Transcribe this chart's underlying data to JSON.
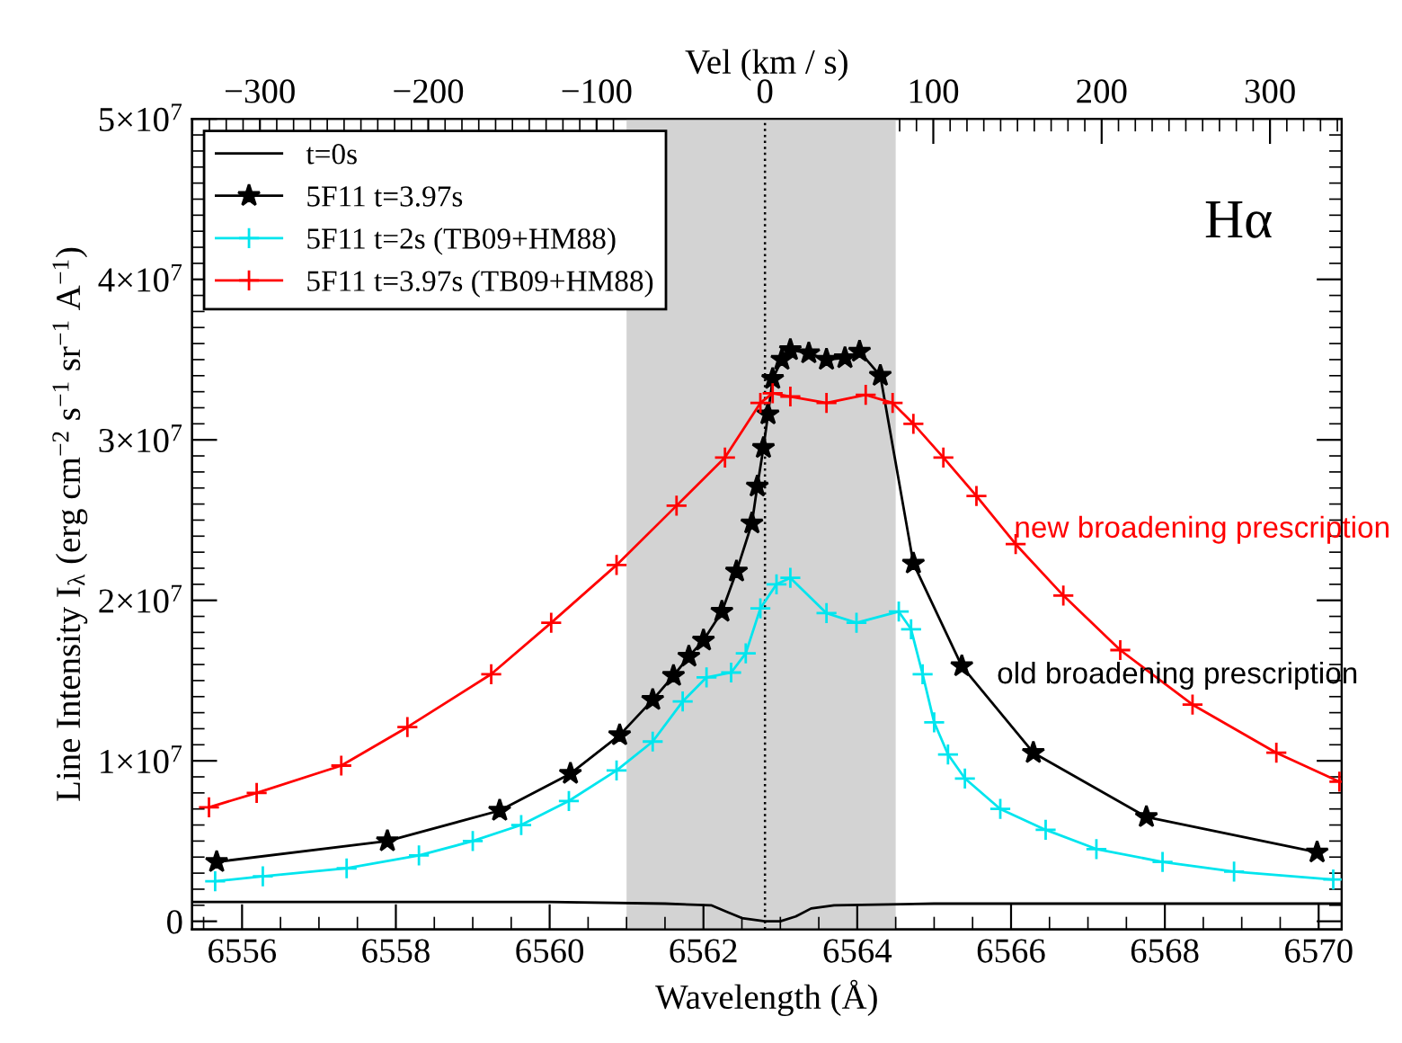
{
  "chart_data": {
    "type": "line",
    "xlabel": "Wavelength (Å)",
    "ylabel": "Line Intensity I$_{λ}$ (erg cm$^{−2}$ s$^{−1}$ sr$^{−1}$ A$^{−1}$)",
    "x2label": "Vel (km / s)",
    "xlim": [
      6555.35,
      6570.3
    ],
    "xticks": [
      6556,
      6558,
      6560,
      6562,
      6564,
      6566,
      6568,
      6570
    ],
    "x2lim": [
      -340.3,
      342.6
    ],
    "x2ticks": [
      {
        "value": -300,
        "label": "−300"
      },
      {
        "value": -200,
        "label": "−200"
      },
      {
        "value": -100,
        "label": "−100"
      },
      0,
      100,
      200,
      300
    ],
    "ylim": [
      -500000.0,
      50000000.0
    ],
    "yticks": [
      0,
      {
        "value": 10000000.0,
        "label": "1×10$^{7}$"
      },
      {
        "value": 20000000.0,
        "label": "2×10$^{7}$"
      },
      {
        "value": 30000000.0,
        "label": "3×10$^{7}$"
      },
      {
        "value": 40000000.0,
        "label": "4×10$^{7}$"
      },
      {
        "value": 50000000.0,
        "label": "5×10$^{7}$"
      }
    ],
    "legend": "top left",
    "series": [
      {
        "name": "t=0s",
        "color": "#000000",
        "marker": "none",
        "x": [
          6555.35,
          6558,
          6560,
          6561.5,
          6562.1,
          6562.3,
          6562.5,
          6562.8,
          6563.0,
          6563.2,
          6563.4,
          6563.7,
          6565,
          6570.3
        ],
        "values": [
          1200000.0,
          1200000.0,
          1200000.0,
          1100000.0,
          1000000.0,
          600000.0,
          200000.0,
          0,
          0,
          300000.0,
          800000.0,
          1000000.0,
          1100000.0,
          1100000.0
        ]
      },
      {
        "name": "5F11 t=3.97s",
        "color": "#000000",
        "marker": "star",
        "x": [
          6555.67,
          6557.89,
          6559.35,
          6560.27,
          6560.91,
          6561.34,
          6561.61,
          6561.81,
          6562.0,
          6562.24,
          6562.43,
          6562.63,
          6562.7,
          6562.78,
          6562.84,
          6562.9,
          6563.02,
          6563.13,
          6563.37,
          6563.6,
          6563.84,
          6564.03,
          6564.3,
          6564.73,
          6565.36,
          6566.29,
          6567.76,
          6569.98
        ],
        "values": [
          3700000.0,
          5000000.0,
          6900000.0,
          9200000.0,
          11600000.0,
          13800000.0,
          15300000.0,
          16500000.0,
          17500000.0,
          19300000.0,
          21800000.0,
          24800000.0,
          27100000.0,
          29500000.0,
          31600000.0,
          33800000.0,
          35000000.0,
          35600000.0,
          35400000.0,
          35000000.0,
          35100000.0,
          35500000.0,
          34000000.0,
          22300000.0,
          15900000.0,
          10500000.0,
          6500000.0,
          4300000.0
        ]
      },
      {
        "name": "5F11 t=2s (TB09+HM88)",
        "color": "#00e5ee",
        "marker": "cross",
        "x": [
          6555.65,
          6556.27,
          6557.36,
          6558.3,
          6559.0,
          6559.63,
          6560.25,
          6560.87,
          6561.34,
          6561.73,
          6562.04,
          6562.36,
          6562.55,
          6562.74,
          6562.95,
          6563.13,
          6563.6,
          6563.99,
          6564.54,
          6564.7,
          6564.85,
          6565.0,
          6565.18,
          6565.4,
          6565.86,
          6566.45,
          6567.11,
          6567.97,
          6568.9,
          6570.19
        ],
        "values": [
          2500000.0,
          2800000.0,
          3300000.0,
          4100000.0,
          5000000.0,
          6000000.0,
          7500000.0,
          9400000.0,
          11200000.0,
          13700000.0,
          15200000.0,
          15500000.0,
          16700000.0,
          19500000.0,
          21000000.0,
          21400000.0,
          19200000.0,
          18600000.0,
          19300000.0,
          18200000.0,
          15400000.0,
          12400000.0,
          10400000.0,
          8900000.0,
          7000000.0,
          5700000.0,
          4500000.0,
          3700000.0,
          3100000.0,
          2600000.0
        ]
      },
      {
        "name": "5F11 t=3.97s (TB09+HM88)",
        "color": "#ff0000",
        "marker": "cross",
        "x": [
          6555.57,
          6556.19,
          6557.29,
          6558.15,
          6559.24,
          6560.02,
          6560.87,
          6561.65,
          6562.28,
          6562.74,
          6562.9,
          6563.13,
          6563.6,
          6564.11,
          6564.46,
          6564.73,
          6565.12,
          6565.55,
          6566.06,
          6566.68,
          6567.42,
          6568.36,
          6569.45,
          6570.27
        ],
        "values": [
          7100000.0,
          8000000.0,
          9700000.0,
          12100000.0,
          15400000.0,
          18600000.0,
          22200000.0,
          25900000.0,
          28900000.0,
          32300000.0,
          32900000.0,
          32700000.0,
          32300000.0,
          32800000.0,
          32300000.0,
          31000000.0,
          28900000.0,
          26500000.0,
          23500000.0,
          20300000.0,
          16900000.0,
          13500000.0,
          10500000.0,
          8700000.0
        ]
      }
    ],
    "bands": [
      {
        "axis": "x",
        "from": 6561.0,
        "to": 6564.5,
        "color": "#d3d3d3"
      }
    ],
    "ref_lines": [
      {
        "axis": "x",
        "value": 6562.8,
        "color": "#000000",
        "line_style": "dotted"
      }
    ],
    "annotations": [
      "Hα",
      "new broadening prescription",
      "old broadening prescription"
    ]
  }
}
